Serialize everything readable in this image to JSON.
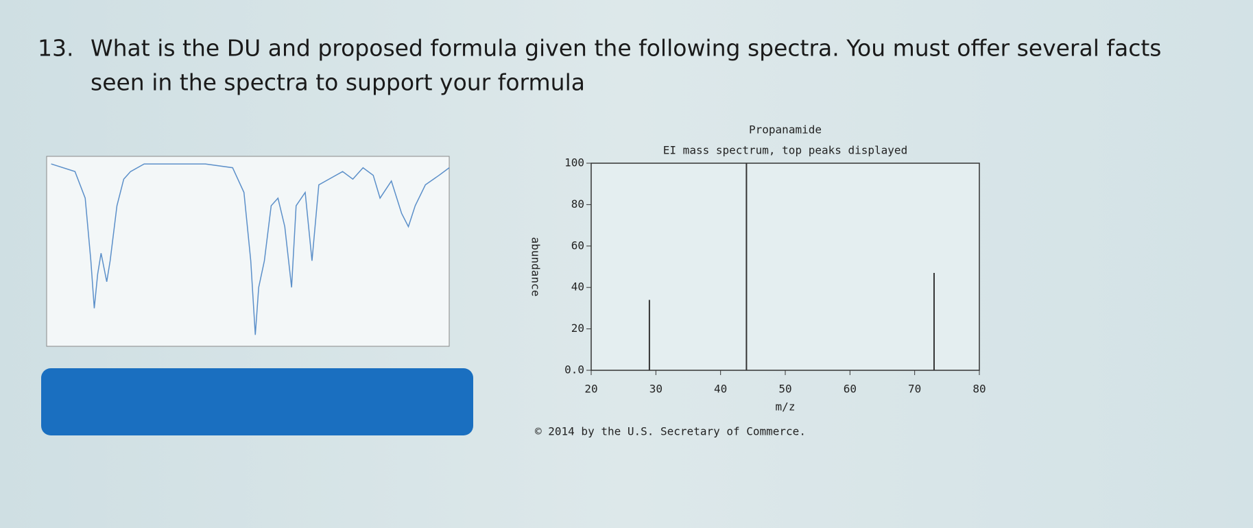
{
  "question": {
    "number": "13.",
    "line1": "What is the DU and proposed formula given the following spectra.  You must offer several facts",
    "line2": "seen in the spectra to support your formula"
  },
  "chart_data": [
    {
      "type": "line",
      "color": "#5b8fc9",
      "x": [
        3960,
        3750,
        3660,
        3610,
        3580,
        3550,
        3520,
        3470,
        3440,
        3380,
        3320,
        3260,
        3140,
        2960,
        2600,
        2360,
        2260,
        2200,
        2160,
        2130,
        2080,
        2020,
        1960,
        1900,
        1840,
        1800,
        1720,
        1660,
        1600,
        1510,
        1390,
        1300,
        1210,
        1120,
        1060,
        960,
        870,
        810,
        750,
        660,
        540,
        450
      ],
      "values": [
        96,
        92,
        78,
        45,
        20,
        38,
        49,
        34,
        45,
        74,
        88,
        92,
        96,
        96,
        96,
        94,
        81,
        45,
        6,
        31,
        45,
        74,
        78,
        63,
        31,
        74,
        81,
        45,
        85,
        88,
        92,
        88,
        94,
        90,
        78,
        87,
        70,
        63,
        74,
        85,
        90,
        94
      ],
      "xlim": [
        4000,
        450
      ],
      "ylim": [
        0,
        100
      ]
    },
    {
      "type": "bar",
      "title": "Propanamide",
      "subtitle": "EI mass spectrum, top peaks displayed",
      "x_label": "m/z",
      "y_label": "abundance",
      "color": "#333333",
      "x": [
        29,
        44,
        73
      ],
      "values": [
        34,
        100,
        47
      ],
      "xlim": [
        20,
        80
      ],
      "ylim": [
        0,
        100
      ],
      "xticks": [
        20,
        30,
        40,
        50,
        60,
        70,
        80
      ],
      "yticks": [
        {
          "value": 0,
          "label": "0.0"
        },
        20,
        40,
        60,
        80,
        100
      ],
      "source": "© 2014 by the U.S. Secretary of Commerce."
    }
  ]
}
